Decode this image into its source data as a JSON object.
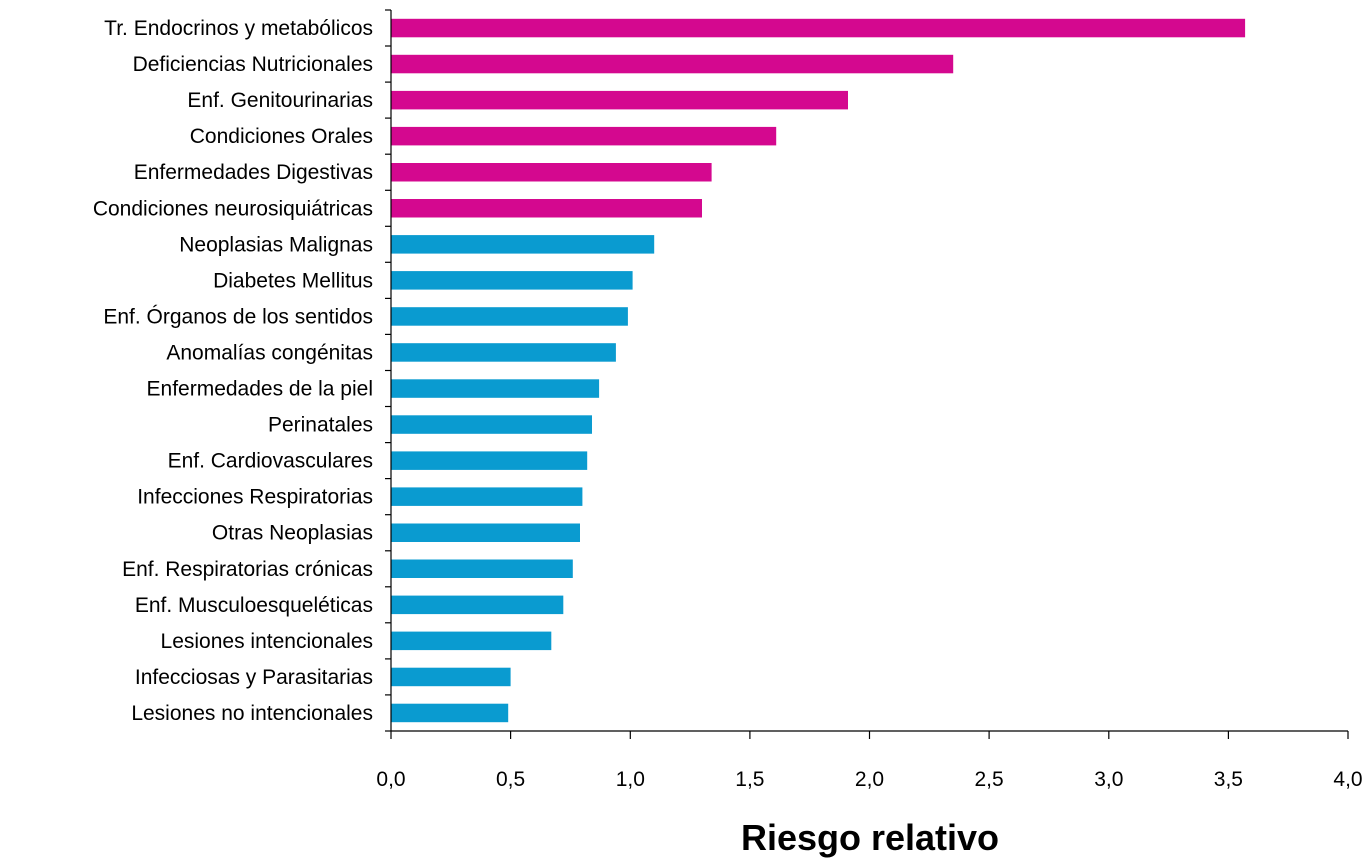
{
  "chart_data": {
    "type": "bar",
    "orientation": "horizontal",
    "categories": [
      "Tr. Endocrinos y metabólicos",
      "Deficiencias Nutricionales",
      "Enf. Genitourinarias",
      "Condiciones Orales",
      "Enfermedades Digestivas",
      "Condiciones neurosiquiátricas",
      "Neoplasias Malignas",
      "Diabetes Mellitus",
      "Enf. Órganos de los sentidos",
      "Anomalías congénitas",
      "Enfermedades de la piel",
      "Perinatales",
      "Enf. Cardiovasculares",
      "Infecciones Respiratorias",
      "Otras Neoplasias",
      "Enf. Respiratorias crónicas",
      "Enf. Musculoesqueléticas",
      "Lesiones intencionales",
      "Infecciosas y Parasitarias",
      "Lesiones no intencionales"
    ],
    "values": [
      3.57,
      2.35,
      1.91,
      1.61,
      1.34,
      1.3,
      1.1,
      1.01,
      0.99,
      0.94,
      0.87,
      0.84,
      0.82,
      0.8,
      0.79,
      0.76,
      0.72,
      0.67,
      0.5,
      0.49
    ],
    "bar_colors": [
      "#d4088f",
      "#d4088f",
      "#d4088f",
      "#d4088f",
      "#d4088f",
      "#d4088f",
      "#0a9bd0",
      "#0a9bd0",
      "#0a9bd0",
      "#0a9bd0",
      "#0a9bd0",
      "#0a9bd0",
      "#0a9bd0",
      "#0a9bd0",
      "#0a9bd0",
      "#0a9bd0",
      "#0a9bd0",
      "#0a9bd0",
      "#0a9bd0",
      "#0a9bd0"
    ],
    "xlabel": "Riesgo relativo",
    "ylabel": "",
    "xlim": [
      0,
      4
    ],
    "xticks": [
      "0,0",
      "0,5",
      "1,0",
      "1,5",
      "2,0",
      "2,5",
      "3,0",
      "3,5",
      "4,0"
    ],
    "grid": false,
    "legend": "none"
  }
}
